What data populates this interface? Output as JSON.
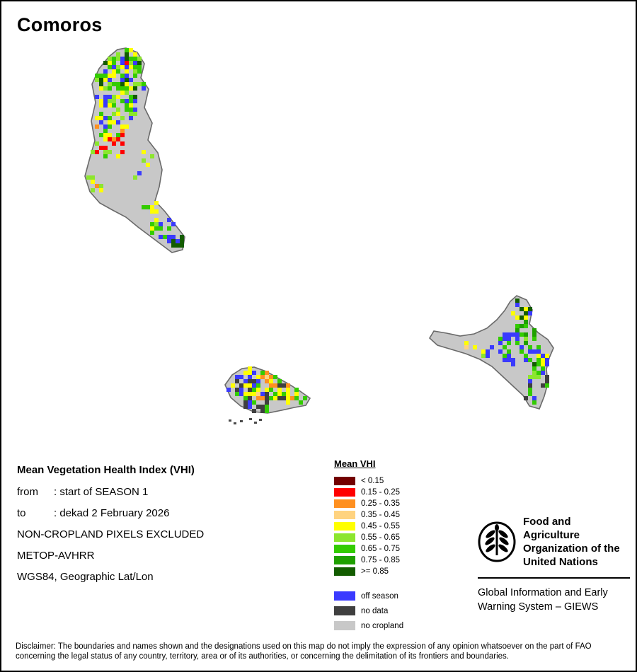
{
  "page": {
    "title": "Comoros"
  },
  "info": {
    "heading": "Mean Vegetation Health Index (VHI)",
    "lines": [
      {
        "label": "from",
        "value": ": start of SEASON 1"
      },
      {
        "label": "to",
        "value": ": dekad 2 February 2026"
      },
      {
        "label": "",
        "value": "NON-CROPLAND PIXELS EXCLUDED"
      },
      {
        "label": "",
        "value": "METOP-AVHRR"
      },
      {
        "label": "",
        "value": "WGS84, Geographic Lat/Lon"
      }
    ]
  },
  "legend": {
    "title": "Mean VHI",
    "classes": [
      {
        "label": "< 0.15",
        "color": "#730000"
      },
      {
        "label": "0.15 - 0.25",
        "color": "#ff0000"
      },
      {
        "label": "0.25 - 0.35",
        "color": "#ff9020"
      },
      {
        "label": "0.35 - 0.45",
        "color": "#ffd37f"
      },
      {
        "label": "0.45 - 0.55",
        "color": "#ffff00"
      },
      {
        "label": "0.55 - 0.65",
        "color": "#8ce62e"
      },
      {
        "label": "0.65 - 0.75",
        "color": "#33cc00"
      },
      {
        "label": "0.75 - 0.85",
        "color": "#1fa000"
      },
      {
        "label": ">= 0.85",
        "color": "#135c00"
      }
    ],
    "extra": [
      {
        "label": "off season",
        "color": "#3a3aff"
      },
      {
        "label": "no data",
        "color": "#3f3f3f"
      },
      {
        "label": "no cropland",
        "color": "#c8c8c8"
      }
    ]
  },
  "fao": {
    "org_lines": [
      "Food and Agriculture",
      "Organization of the",
      "United Nations"
    ],
    "giews_lines": [
      "Global Information and Early",
      "Warning System – GIEWS"
    ]
  },
  "disclaimer": "Disclaimer: The boundaries and names shown and the designations used on this map do not imply the expression of any opinion whatsoever on the part of FAO concerning the legal status of any country, territory, area or of its authorities, or concerning the delimitation of its frontiers and boundaries."
}
